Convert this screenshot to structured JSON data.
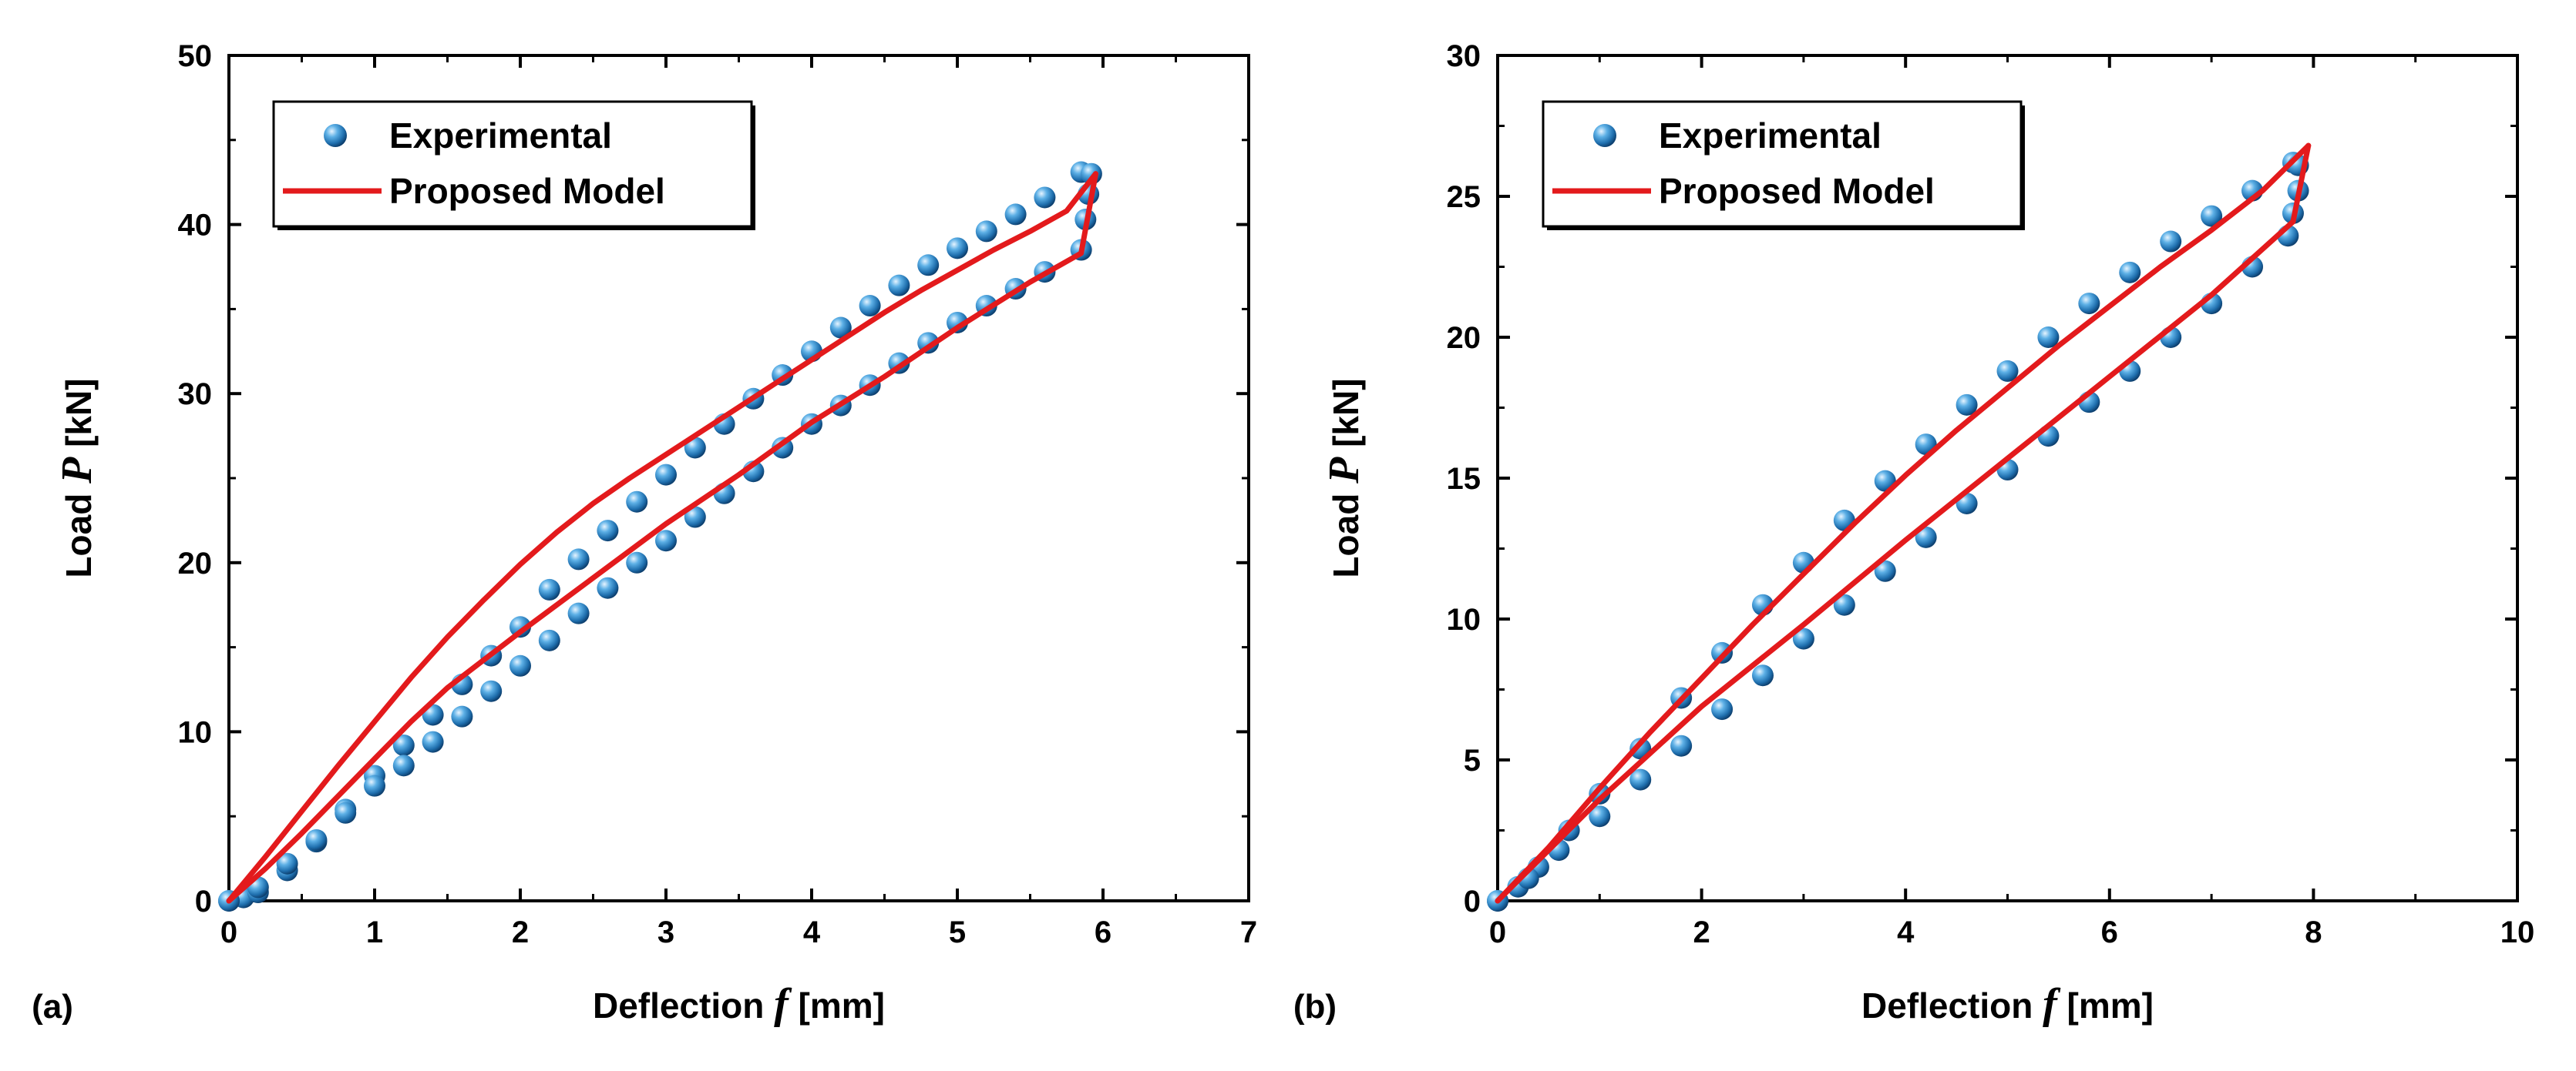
{
  "chart_data": [
    {
      "type": "line",
      "panel_label": "(a)",
      "xlabel": "Deflection",
      "xlabel_var": "f",
      "xlabel_unit": "[mm]",
      "ylabel": "Load",
      "ylabel_var": "P",
      "ylabel_unit": "[kN]",
      "xlim": [
        0,
        7
      ],
      "ylim": [
        0,
        50
      ],
      "xticks": [
        "0",
        "1",
        "2",
        "3",
        "4",
        "5",
        "6",
        "7"
      ],
      "yticks": [
        "0",
        "10",
        "20",
        "30",
        "40",
        "50"
      ],
      "grid": false,
      "legend_position": "top-left",
      "series": [
        {
          "name": "Experimental",
          "kind": "marker",
          "color": "#2a7fb8",
          "loading_points": [
            [
              0,
              0
            ],
            [
              0.1,
              0.2
            ],
            [
              0.2,
              0.5
            ],
            [
              0.4,
              1.8
            ],
            [
              0.6,
              3.5
            ],
            [
              0.8,
              5.4
            ],
            [
              1,
              7.4
            ],
            [
              1.2,
              9.2
            ],
            [
              1.4,
              11
            ],
            [
              1.6,
              12.8
            ],
            [
              1.8,
              14.5
            ],
            [
              2,
              16.2
            ],
            [
              2.2,
              18.4
            ],
            [
              2.4,
              20.2
            ],
            [
              2.6,
              21.9
            ],
            [
              2.8,
              23.6
            ],
            [
              3,
              25.2
            ],
            [
              3.2,
              26.8
            ],
            [
              3.4,
              28.2
            ],
            [
              3.6,
              29.7
            ],
            [
              3.8,
              31.1
            ],
            [
              4,
              32.5
            ],
            [
              4.2,
              33.9
            ],
            [
              4.4,
              35.2
            ],
            [
              4.6,
              36.4
            ],
            [
              4.8,
              37.6
            ],
            [
              5,
              38.6
            ],
            [
              5.2,
              39.6
            ],
            [
              5.4,
              40.6
            ],
            [
              5.6,
              41.6
            ],
            [
              5.85,
              43.1
            ]
          ],
          "unloading_points": [
            [
              5.92,
              43
            ],
            [
              5.9,
              41.8
            ],
            [
              5.88,
              40.3
            ],
            [
              5.85,
              38.5
            ],
            [
              5.6,
              37.2
            ],
            [
              5.4,
              36.2
            ],
            [
              5.2,
              35.2
            ],
            [
              5,
              34.2
            ],
            [
              4.8,
              33
            ],
            [
              4.6,
              31.8
            ],
            [
              4.4,
              30.5
            ],
            [
              4.2,
              29.3
            ],
            [
              4,
              28.2
            ],
            [
              3.8,
              26.8
            ],
            [
              3.6,
              25.4
            ],
            [
              3.4,
              24.1
            ],
            [
              3.2,
              22.7
            ],
            [
              3,
              21.3
            ],
            [
              2.8,
              20
            ],
            [
              2.6,
              18.5
            ],
            [
              2.4,
              17
            ],
            [
              2.2,
              15.4
            ],
            [
              2,
              13.9
            ],
            [
              1.8,
              12.4
            ],
            [
              1.6,
              10.9
            ],
            [
              1.4,
              9.4
            ],
            [
              1.2,
              8
            ],
            [
              1,
              6.8
            ],
            [
              0.8,
              5.2
            ],
            [
              0.6,
              3.6
            ],
            [
              0.4,
              2.2
            ],
            [
              0.2,
              0.8
            ],
            [
              0,
              0
            ]
          ]
        },
        {
          "name": "Proposed Model",
          "kind": "line",
          "color": "#e31a1c",
          "loading_points": [
            [
              0,
              0
            ],
            [
              0.25,
              2.6
            ],
            [
              0.5,
              5.3
            ],
            [
              0.75,
              8
            ],
            [
              1,
              10.6
            ],
            [
              1.25,
              13.2
            ],
            [
              1.5,
              15.6
            ],
            [
              1.75,
              17.8
            ],
            [
              2,
              19.9
            ],
            [
              2.25,
              21.8
            ],
            [
              2.5,
              23.5
            ],
            [
              2.75,
              25
            ],
            [
              3,
              26.4
            ],
            [
              3.25,
              27.8
            ],
            [
              3.5,
              29.2
            ],
            [
              3.75,
              30.6
            ],
            [
              4,
              32
            ],
            [
              4.25,
              33.4
            ],
            [
              4.5,
              34.8
            ],
            [
              4.75,
              36.1
            ],
            [
              5,
              37.3
            ],
            [
              5.25,
              38.5
            ],
            [
              5.5,
              39.6
            ],
            [
              5.75,
              40.8
            ],
            [
              5.95,
              43
            ]
          ],
          "unloading_points": [
            [
              5.95,
              43
            ],
            [
              5.85,
              38.3
            ],
            [
              5.5,
              36.6
            ],
            [
              5,
              33.9
            ],
            [
              4.5,
              31
            ],
            [
              4,
              28.3
            ],
            [
              3.5,
              25.2
            ],
            [
              3,
              22.3
            ],
            [
              2.5,
              19.1
            ],
            [
              2,
              15.9
            ],
            [
              1.5,
              12.6
            ],
            [
              1.25,
              10.6
            ],
            [
              1,
              8.4
            ],
            [
              0.75,
              6.2
            ],
            [
              0.5,
              4
            ],
            [
              0.25,
              1.9
            ],
            [
              0,
              0
            ]
          ]
        }
      ]
    },
    {
      "type": "line",
      "panel_label": "(b)",
      "xlabel": "Deflection",
      "xlabel_var": "f",
      "xlabel_unit": "[mm]",
      "ylabel": "Load",
      "ylabel_var": "P",
      "ylabel_unit": "[kN]",
      "xlim": [
        0,
        10
      ],
      "ylim": [
        0,
        30
      ],
      "xticks": [
        "0",
        "2",
        "4",
        "6",
        "8",
        "10"
      ],
      "yticks": [
        "0",
        "5",
        "10",
        "15",
        "20",
        "25",
        "30"
      ],
      "grid": false,
      "legend_position": "top-left",
      "series": [
        {
          "name": "Experimental",
          "kind": "marker",
          "color": "#2a7fb8",
          "loading_points": [
            [
              0,
              0
            ],
            [
              0.2,
              0.5
            ],
            [
              0.4,
              1.2
            ],
            [
              0.7,
              2.5
            ],
            [
              1,
              3.8
            ],
            [
              1.4,
              5.4
            ],
            [
              1.8,
              7.2
            ],
            [
              2.2,
              8.8
            ],
            [
              2.6,
              10.5
            ],
            [
              3,
              12
            ],
            [
              3.4,
              13.5
            ],
            [
              3.8,
              14.9
            ],
            [
              4.2,
              16.2
            ],
            [
              4.6,
              17.6
            ],
            [
              5,
              18.8
            ],
            [
              5.4,
              20
            ],
            [
              5.8,
              21.2
            ],
            [
              6.2,
              22.3
            ],
            [
              6.6,
              23.4
            ],
            [
              7,
              24.3
            ],
            [
              7.4,
              25.2
            ],
            [
              7.8,
              26.2
            ]
          ],
          "unloading_points": [
            [
              7.85,
              26.1
            ],
            [
              7.85,
              25.2
            ],
            [
              7.8,
              24.4
            ],
            [
              7.75,
              23.6
            ],
            [
              7.4,
              22.5
            ],
            [
              7,
              21.2
            ],
            [
              6.6,
              20
            ],
            [
              6.2,
              18.8
            ],
            [
              5.8,
              17.7
            ],
            [
              5.4,
              16.5
            ],
            [
              5,
              15.3
            ],
            [
              4.6,
              14.1
            ],
            [
              4.2,
              12.9
            ],
            [
              3.8,
              11.7
            ],
            [
              3.4,
              10.5
            ],
            [
              3,
              9.3
            ],
            [
              2.6,
              8
            ],
            [
              2.2,
              6.8
            ],
            [
              1.8,
              5.5
            ],
            [
              1.4,
              4.3
            ],
            [
              1,
              3
            ],
            [
              0.6,
              1.8
            ],
            [
              0.3,
              0.8
            ],
            [
              0,
              0
            ]
          ]
        },
        {
          "name": "Proposed Model",
          "kind": "line",
          "color": "#e31a1c",
          "loading_points": [
            [
              0,
              0
            ],
            [
              0.5,
              1.9
            ],
            [
              1,
              4
            ],
            [
              1.5,
              6
            ],
            [
              2,
              7.9
            ],
            [
              2.5,
              9.8
            ],
            [
              3,
              11.6
            ],
            [
              3.5,
              13.4
            ],
            [
              4,
              15.1
            ],
            [
              4.5,
              16.7
            ],
            [
              5,
              18.2
            ],
            [
              5.5,
              19.7
            ],
            [
              6,
              21.1
            ],
            [
              6.5,
              22.5
            ],
            [
              7,
              23.8
            ],
            [
              7.5,
              25.2
            ],
            [
              7.95,
              26.8
            ]
          ],
          "unloading_points": [
            [
              7.95,
              26.8
            ],
            [
              7.8,
              24.1
            ],
            [
              7,
              21.5
            ],
            [
              6,
              18.6
            ],
            [
              5,
              15.7
            ],
            [
              4,
              12.8
            ],
            [
              3,
              9.8
            ],
            [
              2,
              6.9
            ],
            [
              1,
              3.6
            ],
            [
              0.5,
              1.8
            ],
            [
              0,
              0
            ]
          ]
        }
      ]
    }
  ]
}
